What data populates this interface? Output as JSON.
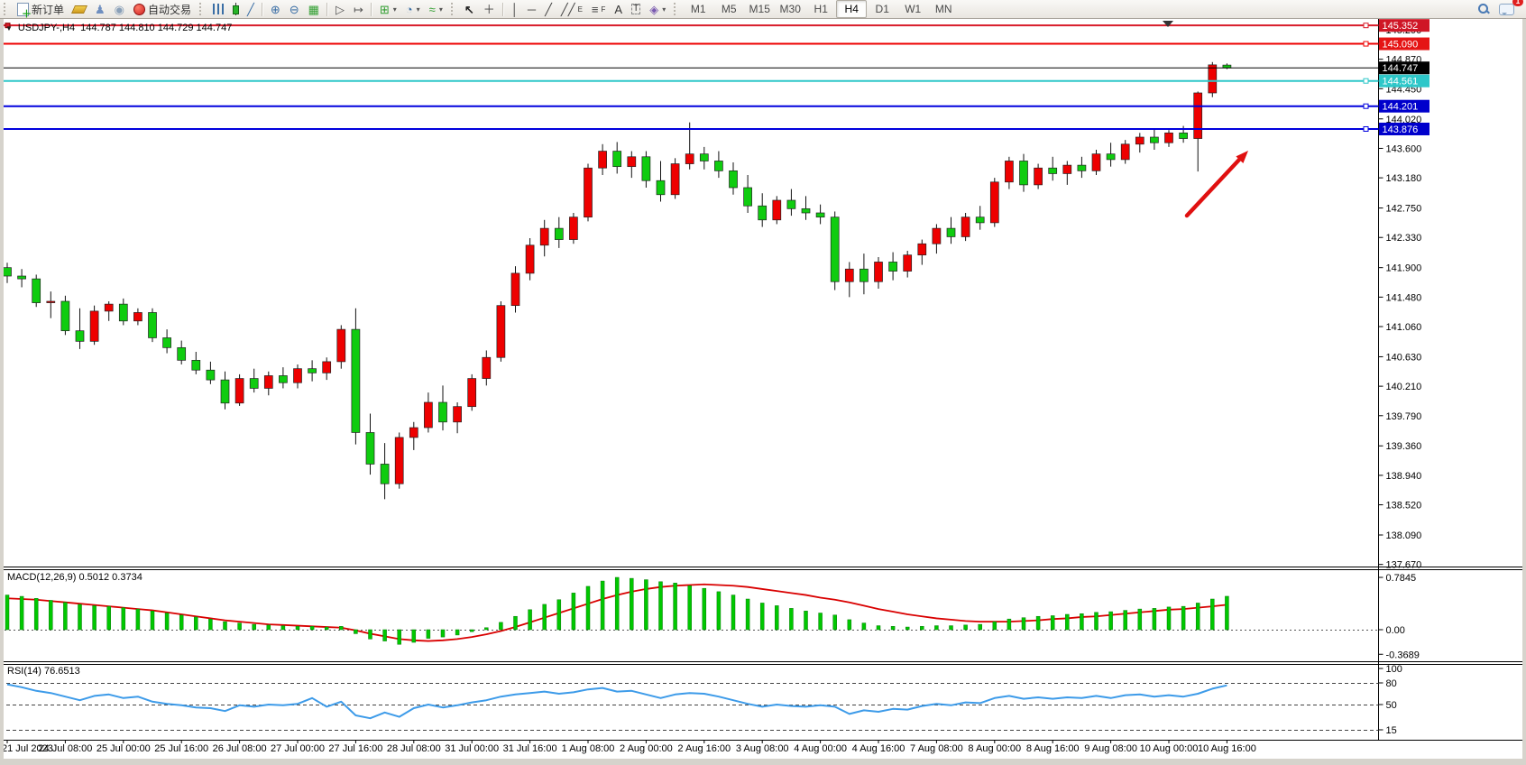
{
  "toolbar": {
    "new_order_label": "新订单",
    "autotrade_label": "自动交易",
    "text_tool_glyph": "A",
    "label_tool_glyph": "T",
    "channel_tool_glyph": "E",
    "fibo_tool_glyph": "F",
    "timeframes": [
      "M1",
      "M5",
      "M15",
      "M30",
      "H1",
      "H4",
      "D1",
      "W1",
      "MN"
    ],
    "active_timeframe": "H4",
    "notification_count": "1"
  },
  "chart_header": {
    "symbol_period": "USDJPY-,H4",
    "ohlc_text": "144.787 144.810 144.729 144.747"
  },
  "hlines": [
    {
      "price": 145.352,
      "label": "145.352",
      "color": "#d81c2a",
      "badge": "#cf1626",
      "width": 2,
      "handle_left": true
    },
    {
      "price": 145.09,
      "label": "145.090",
      "color": "#ee0000",
      "badge": "#e51414",
      "width": 2
    },
    {
      "price": 144.747,
      "label": "144.747",
      "color": "#000000",
      "badge": "#000000",
      "width": 1,
      "current": true
    },
    {
      "price": 144.561,
      "label": "144.561",
      "color": "#2ec7c9",
      "badge": "#2ec7c9",
      "width": 2
    },
    {
      "price": 144.201,
      "label": "144.201",
      "color": "#0000dd",
      "badge": "#0000cc",
      "width": 2
    },
    {
      "price": 143.876,
      "label": "143.876",
      "color": "#0000dd",
      "badge": "#0000cc",
      "width": 2
    }
  ],
  "chart_data": [
    {
      "type": "candlestick",
      "symbol": "USDJPY-",
      "timeframe": "H4",
      "current_bar": {
        "open": 144.787,
        "high": 144.81,
        "low": 144.729,
        "close": 144.747
      },
      "bull_color": "#ee0000",
      "bear_color": "#0fcc0f",
      "wick_color": "#111111",
      "ylim": [
        137.67,
        145.35
      ],
      "y_ticks": [
        "145.290",
        "144.870",
        "144.450",
        "144.020",
        "143.600",
        "143.180",
        "142.750",
        "142.330",
        "141.900",
        "141.480",
        "141.060",
        "140.630",
        "140.210",
        "139.790",
        "139.360",
        "138.940",
        "138.520",
        "138.090",
        "137.670"
      ],
      "x_label_bars": [
        0,
        4,
        8,
        12,
        16,
        20,
        24,
        28,
        32,
        36,
        40,
        44,
        48,
        52,
        56,
        60,
        64,
        68,
        72,
        76,
        80,
        84
      ],
      "x_labels": [
        "21 Jul 2023",
        "24 Jul 08:00",
        "25 Jul 00:00",
        "25 Jul 16:00",
        "26 Jul 08:00",
        "27 Jul 00:00",
        "27 Jul 16:00",
        "28 Jul 08:00",
        "31 Jul 00:00",
        "31 Jul 16:00",
        "1 Aug 08:00",
        "2 Aug 00:00",
        "2 Aug 16:00",
        "3 Aug 08:00",
        "4 Aug 00:00",
        "4 Aug 16:00",
        "7 Aug 08:00",
        "8 Aug 00:00",
        "8 Aug 16:00",
        "9 Aug 08:00",
        "10 Aug 00:00",
        "10 Aug 16:00"
      ],
      "bars": [
        [
          141.9,
          141.97,
          141.68,
          141.78
        ],
        [
          141.78,
          141.88,
          141.62,
          141.74
        ],
        [
          141.74,
          141.8,
          141.34,
          141.4
        ],
        [
          141.4,
          141.56,
          141.18,
          141.42
        ],
        [
          141.42,
          141.5,
          140.94,
          141.0
        ],
        [
          141.0,
          141.32,
          140.74,
          140.85
        ],
        [
          140.85,
          141.36,
          140.8,
          141.28
        ],
        [
          141.28,
          141.42,
          141.14,
          141.38
        ],
        [
          141.38,
          141.46,
          141.08,
          141.14
        ],
        [
          141.14,
          141.32,
          141.08,
          141.26
        ],
        [
          141.26,
          141.32,
          140.84,
          140.9
        ],
        [
          140.9,
          141.02,
          140.68,
          140.76
        ],
        [
          140.76,
          140.86,
          140.52,
          140.58
        ],
        [
          140.58,
          140.7,
          140.38,
          140.44
        ],
        [
          140.44,
          140.56,
          140.24,
          140.3
        ],
        [
          140.3,
          140.42,
          139.88,
          139.97
        ],
        [
          139.97,
          140.38,
          139.93,
          140.32
        ],
        [
          140.32,
          140.46,
          140.12,
          140.18
        ],
        [
          140.18,
          140.42,
          140.08,
          140.36
        ],
        [
          140.36,
          140.48,
          140.18,
          140.26
        ],
        [
          140.26,
          140.52,
          140.18,
          140.46
        ],
        [
          140.46,
          140.58,
          140.28,
          140.4
        ],
        [
          140.4,
          140.62,
          140.3,
          140.56
        ],
        [
          140.56,
          141.08,
          140.46,
          141.02
        ],
        [
          141.02,
          141.32,
          139.38,
          139.55
        ],
        [
          139.55,
          139.82,
          138.95,
          139.1
        ],
        [
          139.1,
          139.4,
          138.6,
          138.82
        ],
        [
          138.82,
          139.55,
          138.75,
          139.48
        ],
        [
          139.48,
          139.7,
          139.3,
          139.62
        ],
        [
          139.62,
          140.12,
          139.55,
          139.98
        ],
        [
          139.98,
          140.22,
          139.58,
          139.7
        ],
        [
          139.7,
          139.98,
          139.54,
          139.92
        ],
        [
          139.92,
          140.38,
          139.86,
          140.32
        ],
        [
          140.32,
          140.72,
          140.22,
          140.62
        ],
        [
          140.62,
          141.42,
          140.56,
          141.36
        ],
        [
          141.36,
          141.92,
          141.26,
          141.82
        ],
        [
          141.82,
          142.32,
          141.72,
          142.22
        ],
        [
          142.22,
          142.58,
          142.06,
          142.46
        ],
        [
          142.46,
          142.62,
          142.18,
          142.3
        ],
        [
          142.3,
          142.68,
          142.24,
          142.62
        ],
        [
          142.62,
          143.38,
          142.56,
          143.32
        ],
        [
          143.32,
          143.66,
          143.22,
          143.56
        ],
        [
          143.56,
          143.69,
          143.24,
          143.34
        ],
        [
          143.34,
          143.56,
          143.18,
          143.48
        ],
        [
          143.48,
          143.56,
          143.04,
          143.14
        ],
        [
          143.14,
          143.42,
          142.84,
          142.94
        ],
        [
          142.94,
          143.46,
          142.88,
          143.38
        ],
        [
          143.38,
          143.97,
          143.3,
          143.52
        ],
        [
          143.52,
          143.62,
          143.3,
          143.42
        ],
        [
          143.42,
          143.56,
          143.18,
          143.28
        ],
        [
          143.28,
          143.4,
          142.94,
          143.04
        ],
        [
          143.04,
          143.22,
          142.68,
          142.78
        ],
        [
          142.78,
          142.96,
          142.48,
          142.58
        ],
        [
          142.58,
          142.92,
          142.52,
          142.86
        ],
        [
          142.86,
          143.02,
          142.64,
          142.74
        ],
        [
          142.74,
          142.92,
          142.58,
          142.68
        ],
        [
          142.68,
          142.8,
          142.52,
          142.62
        ],
        [
          142.62,
          142.7,
          141.58,
          141.7
        ],
        [
          141.7,
          141.98,
          141.48,
          141.88
        ],
        [
          141.88,
          142.1,
          141.52,
          141.7
        ],
        [
          141.7,
          142.05,
          141.6,
          141.98
        ],
        [
          141.98,
          142.12,
          141.72,
          141.85
        ],
        [
          141.85,
          142.14,
          141.76,
          142.08
        ],
        [
          142.08,
          142.3,
          141.94,
          142.24
        ],
        [
          142.24,
          142.52,
          142.1,
          142.46
        ],
        [
          142.46,
          142.62,
          142.24,
          142.34
        ],
        [
          142.34,
          142.68,
          142.28,
          142.62
        ],
        [
          142.62,
          142.78,
          142.44,
          142.54
        ],
        [
          142.54,
          143.18,
          142.48,
          143.12
        ],
        [
          143.12,
          143.48,
          143.02,
          143.42
        ],
        [
          143.42,
          143.52,
          142.98,
          143.08
        ],
        [
          143.08,
          143.38,
          143.02,
          143.32
        ],
        [
          143.32,
          143.48,
          143.14,
          143.24
        ],
        [
          143.24,
          143.42,
          143.08,
          143.36
        ],
        [
          143.36,
          143.48,
          143.18,
          143.28
        ],
        [
          143.28,
          143.58,
          143.22,
          143.52
        ],
        [
          143.52,
          143.68,
          143.34,
          143.44
        ],
        [
          143.44,
          143.72,
          143.38,
          143.66
        ],
        [
          143.66,
          143.82,
          143.54,
          143.76
        ],
        [
          143.76,
          143.88,
          143.58,
          143.68
        ],
        [
          143.68,
          143.86,
          143.62,
          143.82
        ],
        [
          143.82,
          143.92,
          143.68,
          143.74
        ],
        [
          143.74,
          144.41,
          143.27,
          144.39
        ],
        [
          144.39,
          144.83,
          144.33,
          144.79
        ],
        [
          144.787,
          144.81,
          144.729,
          144.747
        ]
      ],
      "annotations": [
        {
          "type": "arrow",
          "direction": "up-right",
          "color": "#e01010"
        }
      ]
    },
    {
      "type": "bar+line",
      "name": "MACD",
      "label": "MACD(12,26,9) 0.5012 0.3734",
      "params": [
        12,
        26,
        9
      ],
      "macd_value": 0.5012,
      "signal_value": 0.3734,
      "histogram_color": "#00c800",
      "signal_color": "#d90000",
      "y_ticks": [
        "0.7845",
        "0.00",
        "-0.3689"
      ],
      "histogram": [
        0.52,
        0.5,
        0.47,
        0.44,
        0.41,
        0.38,
        0.36,
        0.35,
        0.33,
        0.31,
        0.28,
        0.25,
        0.22,
        0.19,
        0.16,
        0.12,
        0.1,
        0.08,
        0.07,
        0.06,
        0.05,
        0.05,
        0.04,
        0.05,
        -0.06,
        -0.14,
        -0.17,
        -0.22,
        -0.19,
        -0.13,
        -0.11,
        -0.08,
        -0.03,
        0.03,
        0.11,
        0.2,
        0.3,
        0.38,
        0.45,
        0.55,
        0.65,
        0.73,
        0.7845,
        0.77,
        0.75,
        0.72,
        0.7,
        0.66,
        0.62,
        0.57,
        0.52,
        0.46,
        0.4,
        0.36,
        0.32,
        0.28,
        0.25,
        0.22,
        0.15,
        0.1,
        0.06,
        0.05,
        0.04,
        0.05,
        0.06,
        0.06,
        0.07,
        0.08,
        0.12,
        0.16,
        0.18,
        0.2,
        0.21,
        0.23,
        0.24,
        0.26,
        0.27,
        0.29,
        0.31,
        0.32,
        0.34,
        0.35,
        0.4,
        0.46,
        0.5012
      ],
      "signal": [
        0.47,
        0.46,
        0.45,
        0.43,
        0.41,
        0.39,
        0.37,
        0.35,
        0.33,
        0.31,
        0.29,
        0.26,
        0.23,
        0.2,
        0.17,
        0.14,
        0.12,
        0.1,
        0.08,
        0.07,
        0.06,
        0.05,
        0.04,
        0.03,
        -0.01,
        -0.06,
        -0.1,
        -0.14,
        -0.16,
        -0.17,
        -0.16,
        -0.14,
        -0.11,
        -0.07,
        -0.02,
        0.04,
        0.11,
        0.18,
        0.25,
        0.32,
        0.39,
        0.46,
        0.52,
        0.57,
        0.61,
        0.64,
        0.66,
        0.67,
        0.68,
        0.67,
        0.66,
        0.64,
        0.61,
        0.58,
        0.55,
        0.52,
        0.48,
        0.45,
        0.41,
        0.36,
        0.31,
        0.27,
        0.23,
        0.2,
        0.17,
        0.15,
        0.13,
        0.12,
        0.12,
        0.12,
        0.13,
        0.14,
        0.16,
        0.17,
        0.19,
        0.2,
        0.22,
        0.24,
        0.26,
        0.28,
        0.3,
        0.31,
        0.33,
        0.35,
        0.3734
      ]
    },
    {
      "type": "line",
      "name": "RSI",
      "label": "RSI(14) 76.6513",
      "period": 14,
      "value": 76.6513,
      "line_color": "#3d9be9",
      "range": [
        0,
        100
      ],
      "levels": [
        80,
        50,
        15
      ],
      "y_ticks": [
        "100",
        "80",
        "50",
        "15"
      ],
      "values": [
        78,
        74,
        69,
        66,
        61,
        56,
        62,
        64,
        59,
        61,
        54,
        51,
        49,
        46,
        45,
        41,
        49,
        47,
        50,
        49,
        51,
        59,
        47,
        54,
        35,
        31,
        39,
        33,
        45,
        50,
        46,
        49,
        53,
        56,
        61,
        64,
        66,
        68,
        65,
        67,
        71,
        73,
        68,
        69,
        64,
        59,
        64,
        66,
        65,
        61,
        56,
        51,
        47,
        50,
        48,
        47,
        49,
        47,
        37,
        42,
        40,
        44,
        43,
        48,
        51,
        49,
        53,
        52,
        59,
        62,
        58,
        60,
        58,
        60,
        59,
        62,
        59,
        63,
        64,
        61,
        63,
        61,
        65,
        72,
        76.65
      ]
    }
  ]
}
